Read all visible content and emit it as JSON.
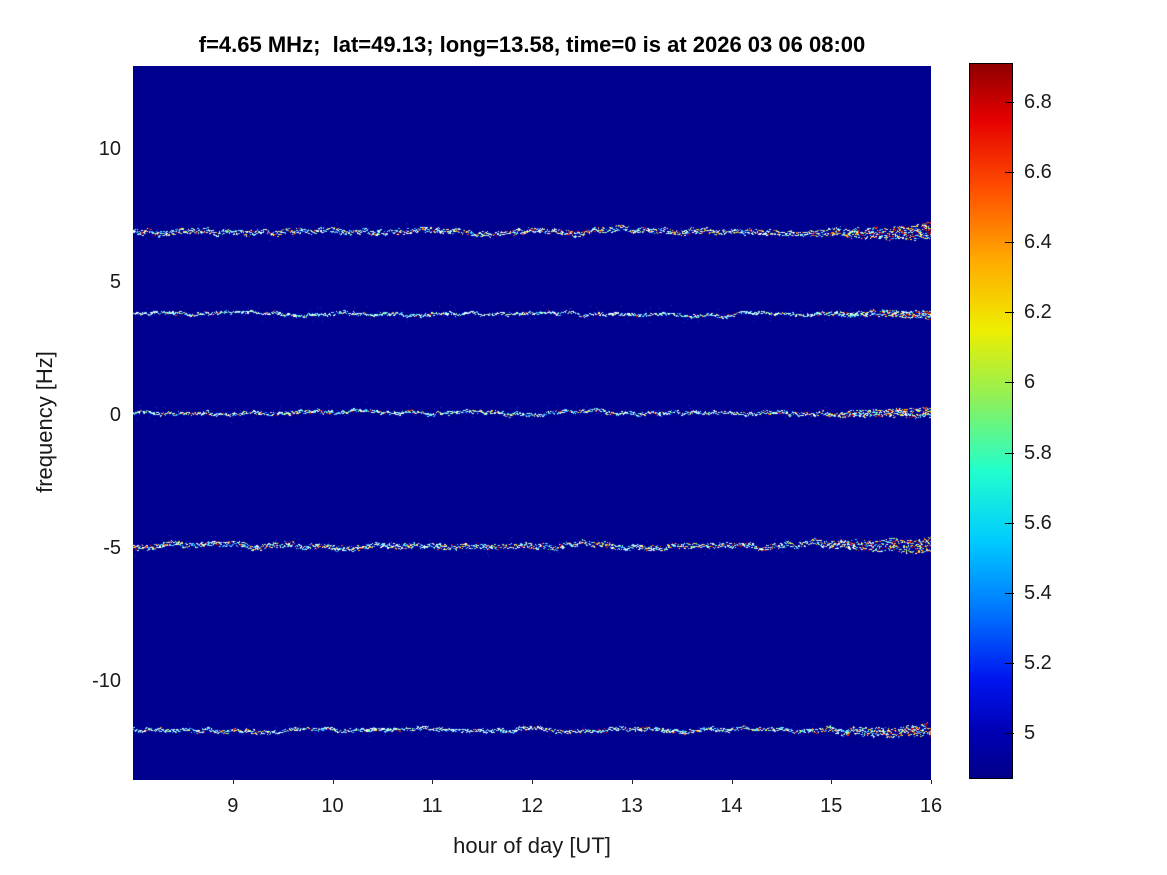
{
  "figure": {
    "background": "#ffffff"
  },
  "chart_data": {
    "type": "heatmap",
    "subtype": "doppler-spectrogram",
    "title": "f=4.65 MHz;  lat=49.13; long=13.58, time=0 is at 2026 03 06 08:00",
    "xlabel": "hour of day [UT]",
    "ylabel": "frequency [Hz]",
    "xlim": [
      8,
      16
    ],
    "ylim": [
      -13.7,
      13.1
    ],
    "grid": false,
    "x_ticks": [
      {
        "value": 9,
        "label": "9"
      },
      {
        "value": 10,
        "label": "10"
      },
      {
        "value": 11,
        "label": "11"
      },
      {
        "value": 12,
        "label": "12"
      },
      {
        "value": 13,
        "label": "13"
      },
      {
        "value": 14,
        "label": "14"
      },
      {
        "value": 15,
        "label": "15"
      },
      {
        "value": 16,
        "label": "16"
      }
    ],
    "y_ticks": [
      {
        "value": 10,
        "label": "10"
      },
      {
        "value": 5,
        "label": "5"
      },
      {
        "value": 0,
        "label": "0"
      },
      {
        "value": -5,
        "label": "-5"
      },
      {
        "value": -10,
        "label": "-10"
      }
    ],
    "background_color": "#00008f",
    "colorbar": {
      "position": "right",
      "cmin": 4.87,
      "cmax": 6.91,
      "colormap": "jet",
      "ticks": [
        {
          "value": 6.8,
          "label": "6.8"
        },
        {
          "value": 6.6,
          "label": "6.6"
        },
        {
          "value": 6.4,
          "label": "6.4"
        },
        {
          "value": 6.2,
          "label": "6.2"
        },
        {
          "value": 6,
          "label": "6"
        },
        {
          "value": 5.8,
          "label": "5.8"
        },
        {
          "value": 5.6,
          "label": "5.6"
        },
        {
          "value": 5.4,
          "label": "5.4"
        },
        {
          "value": 5.2,
          "label": "5.2"
        },
        {
          "value": 5,
          "label": "5"
        }
      ],
      "colormap_stops": [
        {
          "value": 4.87,
          "color": "#000089"
        },
        {
          "value": 5.0,
          "color": "#0000b4"
        },
        {
          "value": 5.15,
          "color": "#0014f0"
        },
        {
          "value": 5.35,
          "color": "#0077ff"
        },
        {
          "value": 5.55,
          "color": "#00ccff"
        },
        {
          "value": 5.75,
          "color": "#22ffcc"
        },
        {
          "value": 5.95,
          "color": "#8cf05a"
        },
        {
          "value": 6.15,
          "color": "#eeee00"
        },
        {
          "value": 6.35,
          "color": "#ffaa00"
        },
        {
          "value": 6.55,
          "color": "#ff5000"
        },
        {
          "value": 6.75,
          "color": "#e60000"
        },
        {
          "value": 6.91,
          "color": "#8f0000"
        }
      ]
    },
    "traces": [
      {
        "frequency_hz": 6.9,
        "hour_start": 8,
        "hour_end": 16,
        "thickness": 5,
        "density": 0.8,
        "warmth": 0.22,
        "end_burst": true,
        "end_bias": 0
      },
      {
        "frequency_hz": 3.8,
        "hour_start": 8,
        "hour_end": 16,
        "thickness": 2.6,
        "density": 0.45,
        "warmth": 0.08,
        "end_burst": true,
        "end_bias": 0
      },
      {
        "frequency_hz": 0.1,
        "hour_start": 8,
        "hour_end": 16,
        "thickness": 3.2,
        "density": 0.55,
        "warmth": 0.13,
        "end_burst": true,
        "end_bias": 0
      },
      {
        "frequency_hz": -4.9,
        "hour_start": 8,
        "hour_end": 16,
        "thickness": 5,
        "density": 0.8,
        "warmth": 0.22,
        "end_burst": true,
        "end_bias": 0
      },
      {
        "frequency_hz": -11.8,
        "hour_start": 8,
        "hour_end": 16,
        "thickness": 3.4,
        "density": 0.6,
        "warmth": 0.13,
        "end_burst": true,
        "end_bias": 1
      }
    ],
    "trace_palette": {
      "cool": [
        "#ffffff",
        "#ffffff",
        "#e6ffff",
        "#aaffff",
        "#66f0ff",
        "#44ccff",
        "#3399ff",
        "#99ff99"
      ],
      "warm": [
        "#ffff44",
        "#ffcc00",
        "#ff8800",
        "#ff4400",
        "#ee1100",
        "#cc0000"
      ]
    }
  }
}
